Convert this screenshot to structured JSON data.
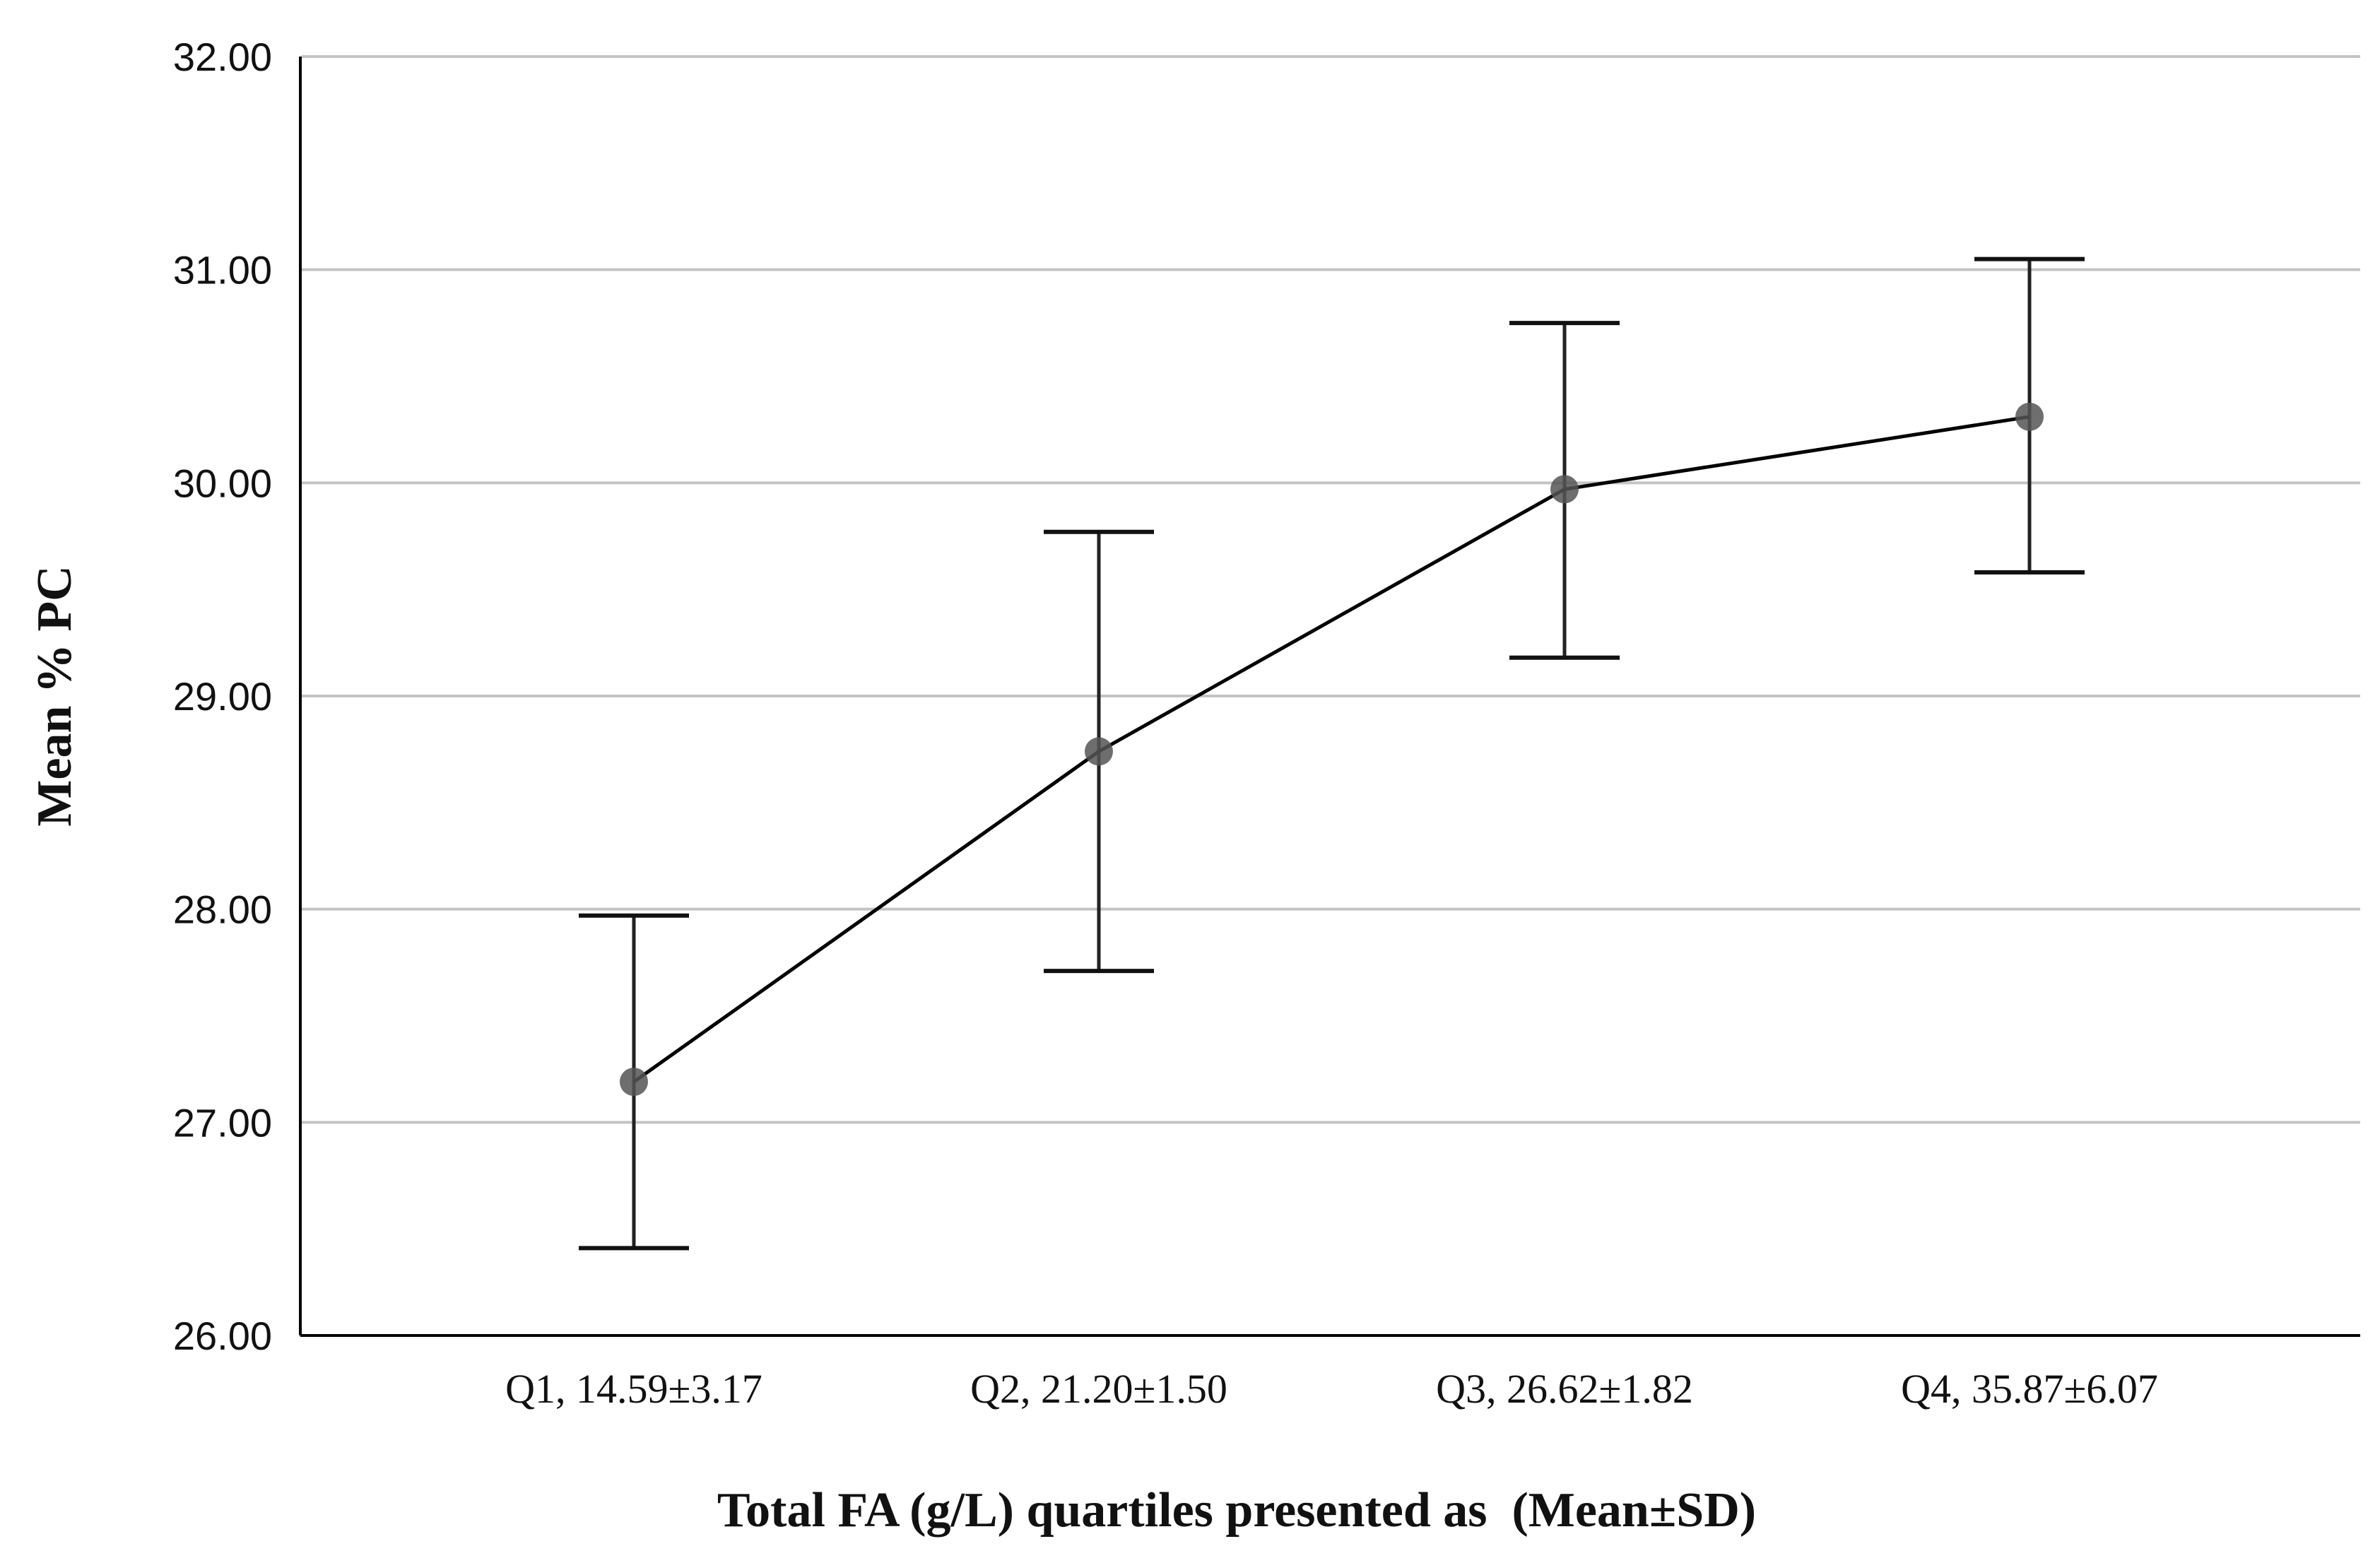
{
  "chart_data": {
    "type": "line",
    "title": "",
    "xlabel": "Total FA (g/L) quartiles presented as  (Mean±SD)",
    "ylabel": "Mean % PC",
    "categories": [
      "Q1, 14.59±3.17",
      "Q2, 21.20±1.50",
      "Q3, 26.62±1.82",
      "Q4, 35.87±6.07"
    ],
    "series": [
      {
        "name": "Mean % PC",
        "values": [
          27.19,
          28.74,
          29.97,
          30.31
        ],
        "error_low": [
          26.41,
          27.71,
          29.18,
          29.58
        ],
        "error_high": [
          27.97,
          29.77,
          30.75,
          31.05
        ]
      }
    ],
    "ylim": [
      26.0,
      32.0
    ],
    "yticks": [
      26.0,
      27.0,
      28.0,
      29.0,
      30.0,
      31.0,
      32.0
    ],
    "ytick_labels": [
      "26.00",
      "27.00",
      "28.00",
      "29.00",
      "30.00",
      "31.00",
      "32.00"
    ],
    "grid": true,
    "colors": {
      "line": "#000000",
      "marker": "#555555",
      "grid": "#c4c4c4",
      "axis": "#000000"
    }
  }
}
